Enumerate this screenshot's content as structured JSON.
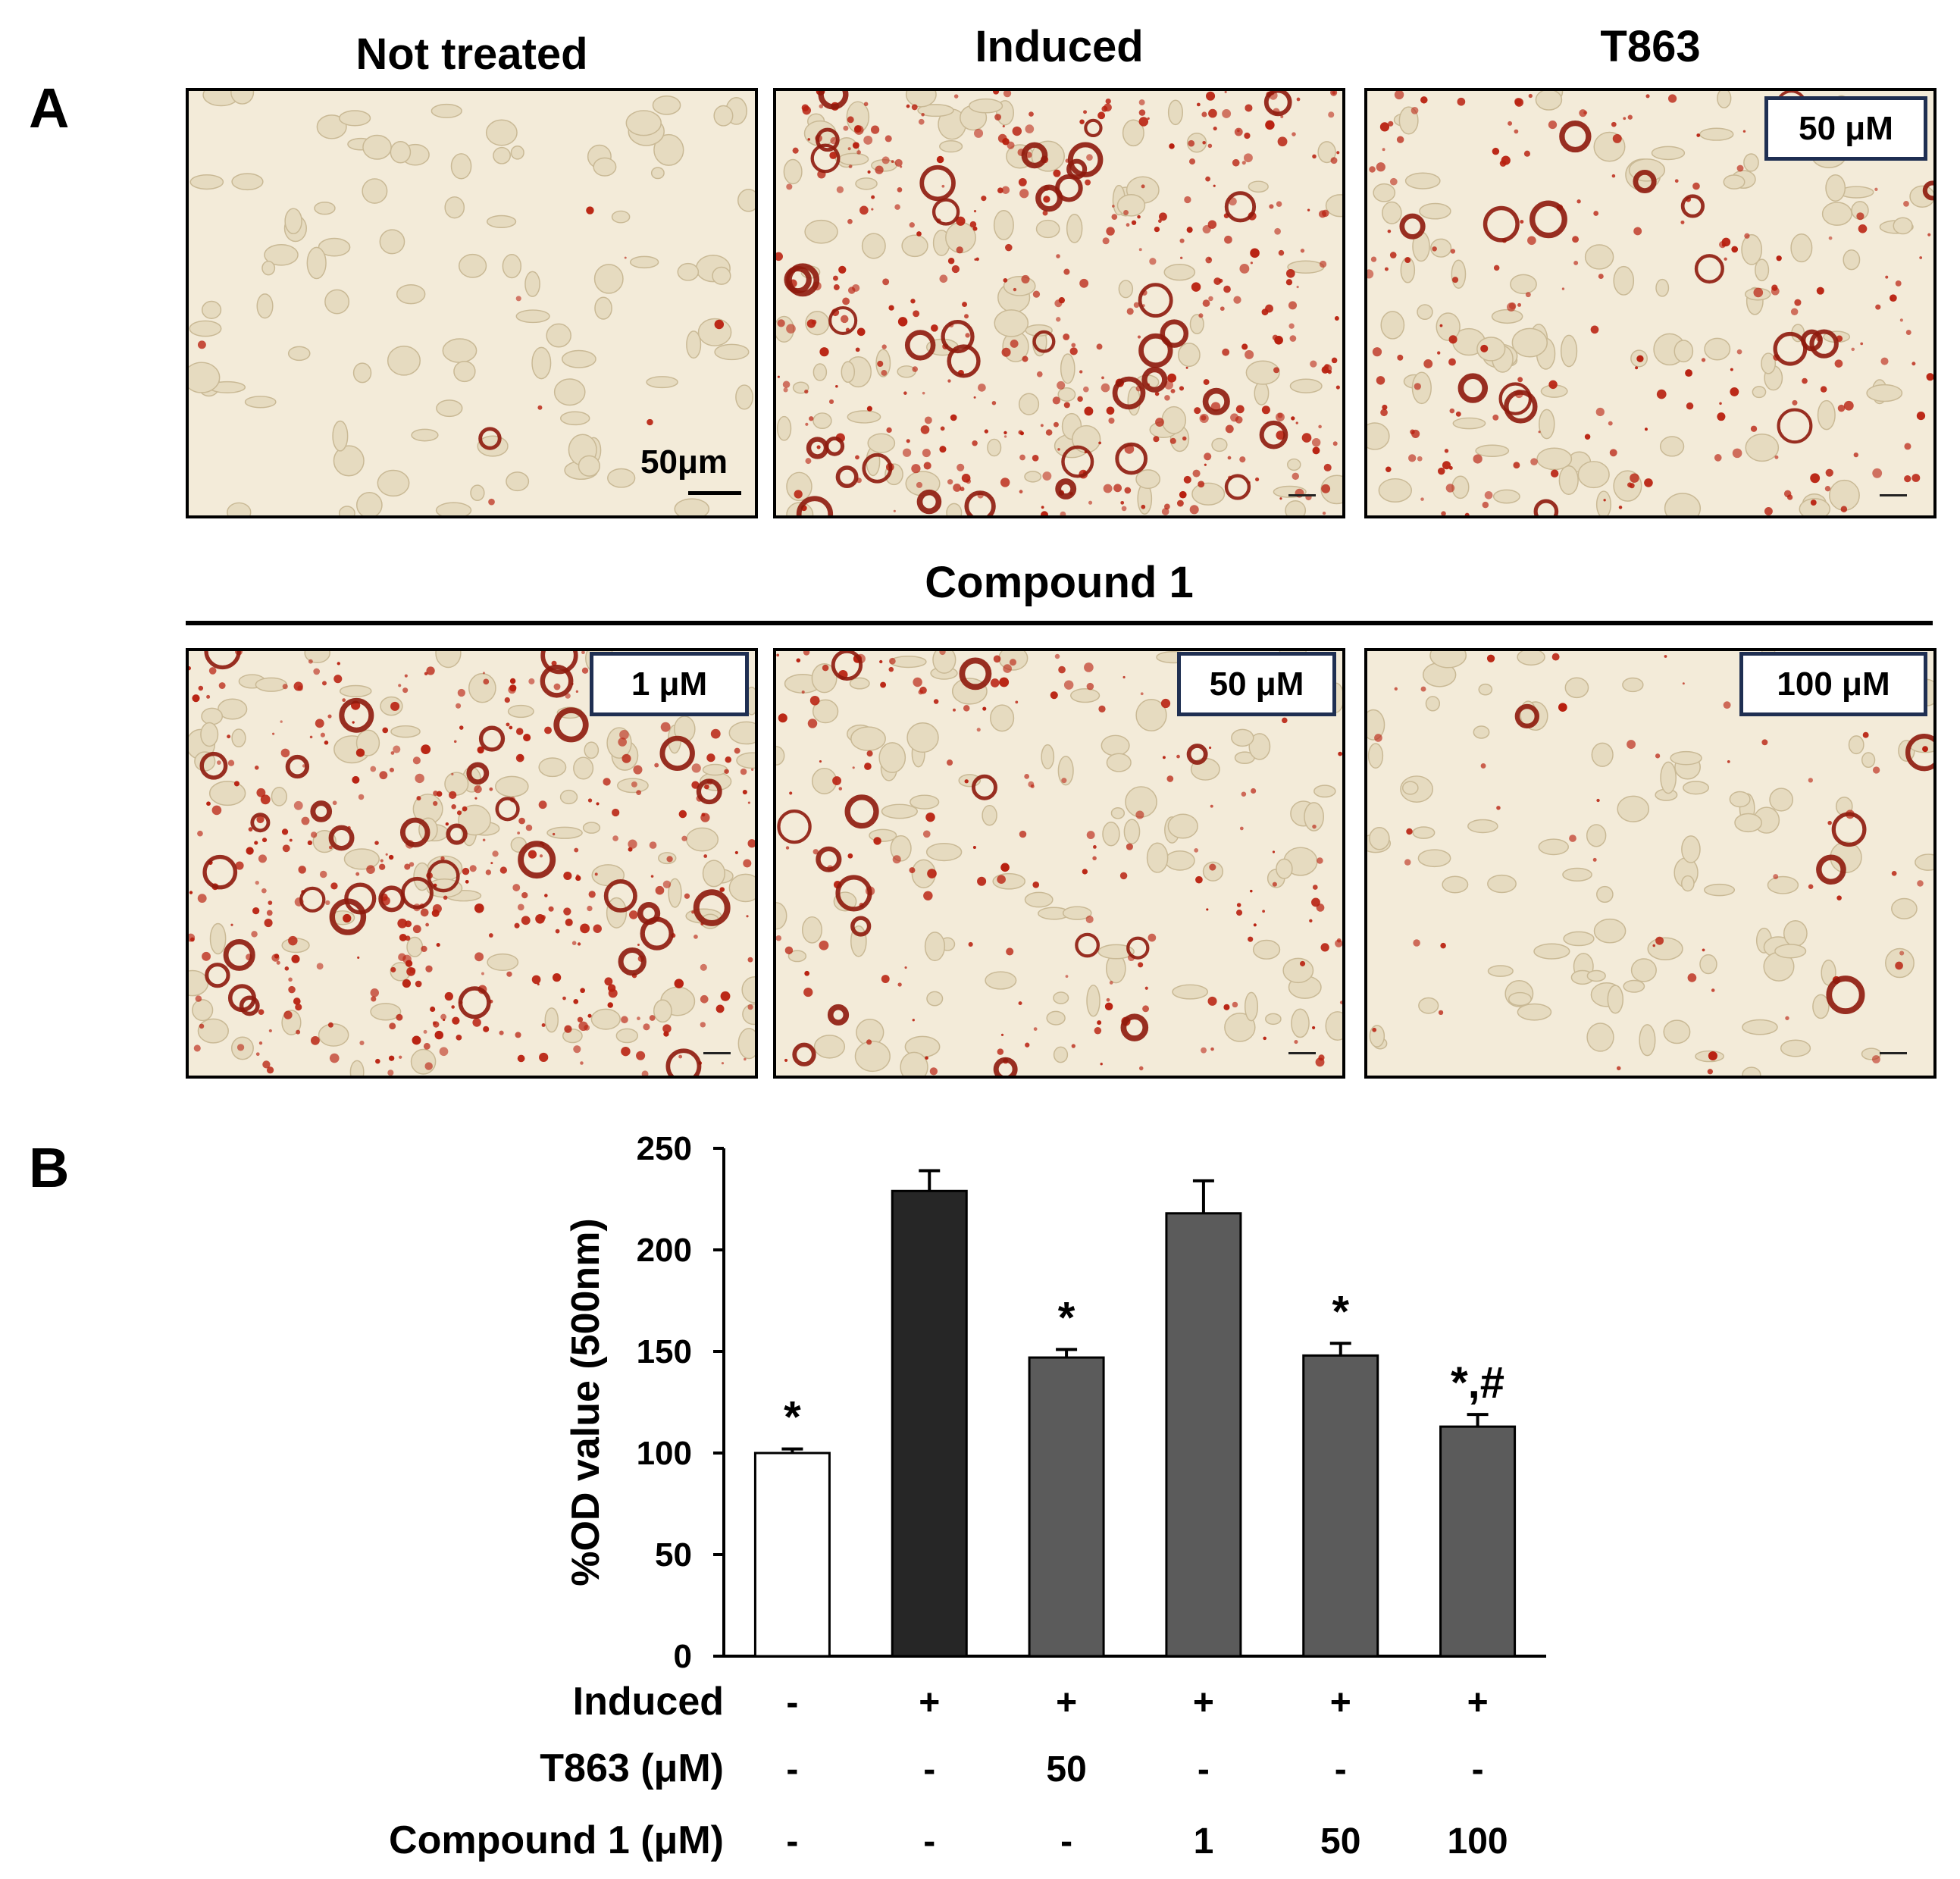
{
  "panel_a": {
    "letter": "A",
    "titles": [
      "Not treated",
      "Induced",
      "T863"
    ],
    "group_title": "Compound 1",
    "scale_bar_label": "50μm",
    "badges": {
      "t863": "50 μM",
      "c1_low": "1 μM",
      "c1_mid": "50 μM",
      "c1_high": "100 μM"
    },
    "stain_color": "#b8200f",
    "background_color": "#f3ebd9"
  },
  "panel_b": {
    "letter": "B"
  },
  "chart_data": {
    "type": "bar",
    "ylabel": "%OD value (500nm)",
    "xlabel": "",
    "ylim": [
      0,
      250
    ],
    "yticks": [
      0,
      50,
      100,
      150,
      200,
      250
    ],
    "grid": false,
    "bars": [
      {
        "value": 100,
        "error": 2,
        "annotation": "*",
        "color": "#ffffff"
      },
      {
        "value": 229,
        "error": 10,
        "annotation": "",
        "color": "#262626"
      },
      {
        "value": 147,
        "error": 4,
        "annotation": "*",
        "color": "#5b5b5b"
      },
      {
        "value": 218,
        "error": 16,
        "annotation": "",
        "color": "#5b5b5b"
      },
      {
        "value": 148,
        "error": 6,
        "annotation": "*",
        "color": "#5b5b5b"
      },
      {
        "value": 113,
        "error": 6,
        "annotation": "*,#",
        "color": "#5b5b5b"
      }
    ],
    "condition_rows": [
      {
        "label": "Induced",
        "values": [
          "-",
          "+",
          "+",
          "+",
          "+",
          "+"
        ]
      },
      {
        "label": "T863 (μM)",
        "values": [
          "-",
          "-",
          "50",
          "-",
          "-",
          "-"
        ]
      },
      {
        "label": "Compound 1 (μM)",
        "values": [
          "-",
          "-",
          "-",
          "1",
          "50",
          "100"
        ]
      }
    ]
  }
}
